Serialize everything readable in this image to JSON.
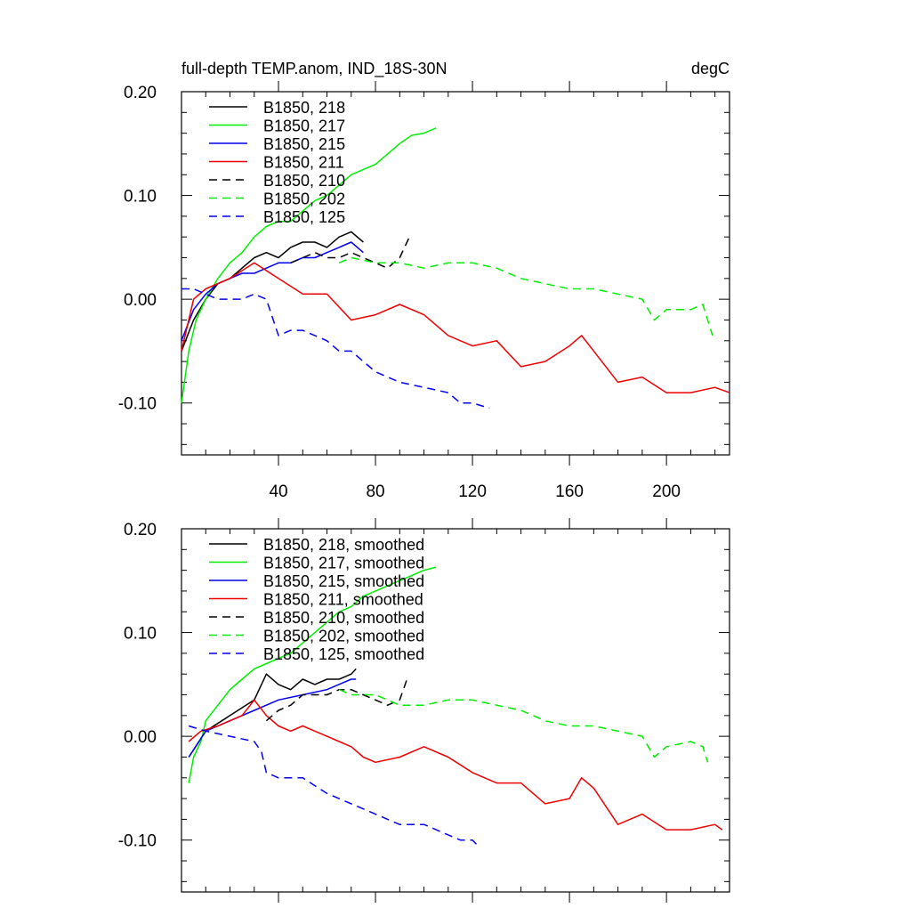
{
  "chart_data": [
    {
      "type": "line",
      "title": "full-depth TEMP.anom, IND_18S-30N",
      "units": "degC",
      "xlim": [
        0,
        226
      ],
      "ylim": [
        -0.15,
        0.2
      ],
      "yticks": [
        "0.20",
        "0.10",
        "0.00",
        "-0.10"
      ],
      "ytick_values": [
        0.2,
        0.1,
        0.0,
        -0.1
      ],
      "xticks": [
        "40",
        "80",
        "120",
        "160",
        "200"
      ],
      "xtick_values": [
        40,
        80,
        120,
        160,
        200
      ],
      "grid": false,
      "legend_position": "top-left",
      "series": [
        {
          "name": "B1850, 218",
          "color": "#000000",
          "dash": false,
          "x": [
            0,
            5,
            10,
            15,
            20,
            25,
            30,
            35,
            40,
            45,
            50,
            55,
            60,
            65,
            70,
            75
          ],
          "y": [
            -0.05,
            -0.02,
            0.0,
            0.015,
            0.02,
            0.03,
            0.04,
            0.045,
            0.04,
            0.05,
            0.055,
            0.055,
            0.05,
            0.06,
            0.065,
            0.055
          ]
        },
        {
          "name": "B1850, 217",
          "color": "#00ee00",
          "dash": false,
          "x": [
            0,
            3,
            6,
            10,
            15,
            20,
            25,
            30,
            35,
            40,
            45,
            50,
            55,
            60,
            65,
            70,
            75,
            80,
            85,
            90,
            95,
            100,
            105
          ],
          "y": [
            -0.1,
            -0.05,
            -0.02,
            0.0,
            0.02,
            0.035,
            0.045,
            0.06,
            0.07,
            0.075,
            0.075,
            0.085,
            0.095,
            0.1,
            0.11,
            0.12,
            0.125,
            0.13,
            0.14,
            0.15,
            0.158,
            0.16,
            0.165
          ]
        },
        {
          "name": "B1850, 215",
          "color": "#0000ee",
          "dash": false,
          "x": [
            0,
            5,
            10,
            15,
            20,
            25,
            30,
            35,
            40,
            45,
            50,
            55,
            60,
            65,
            70,
            75
          ],
          "y": [
            -0.04,
            -0.01,
            0.005,
            0.015,
            0.02,
            0.025,
            0.025,
            0.03,
            0.035,
            0.035,
            0.04,
            0.04,
            0.045,
            0.05,
            0.055,
            0.045
          ]
        },
        {
          "name": "B1850, 211",
          "color": "#ee0000",
          "dash": false,
          "x": [
            0,
            5,
            10,
            20,
            30,
            40,
            50,
            60,
            70,
            80,
            90,
            100,
            110,
            120,
            130,
            140,
            150,
            160,
            165,
            170,
            180,
            190,
            200,
            210,
            220,
            226
          ],
          "y": [
            -0.05,
            0.0,
            0.01,
            0.02,
            0.035,
            0.02,
            0.005,
            0.005,
            -0.02,
            -0.015,
            -0.005,
            -0.015,
            -0.035,
            -0.045,
            -0.04,
            -0.065,
            -0.06,
            -0.045,
            -0.035,
            -0.05,
            -0.08,
            -0.075,
            -0.09,
            -0.09,
            -0.085,
            -0.09
          ]
        },
        {
          "name": "B1850, 210",
          "color": "#000000",
          "dash": true,
          "x": [
            45,
            50,
            55,
            60,
            65,
            70,
            75,
            80,
            85,
            90,
            94
          ],
          "y": [
            0.035,
            0.04,
            0.045,
            0.04,
            0.04,
            0.045,
            0.04,
            0.035,
            0.03,
            0.04,
            0.06
          ]
        },
        {
          "name": "B1850, 202",
          "color": "#00ee00",
          "dash": true,
          "x": [
            65,
            70,
            80,
            90,
            100,
            110,
            120,
            130,
            140,
            150,
            160,
            170,
            180,
            190,
            195,
            200,
            210,
            215,
            219
          ],
          "y": [
            0.035,
            0.04,
            0.035,
            0.035,
            0.03,
            0.035,
            0.035,
            0.03,
            0.02,
            0.015,
            0.01,
            0.01,
            0.005,
            0.0,
            -0.02,
            -0.01,
            -0.01,
            -0.005,
            -0.035
          ]
        },
        {
          "name": "B1850, 125",
          "color": "#0000ee",
          "dash": true,
          "x": [
            0,
            5,
            10,
            15,
            20,
            25,
            30,
            35,
            40,
            45,
            50,
            55,
            60,
            65,
            70,
            75,
            80,
            90,
            100,
            110,
            115,
            120,
            127
          ],
          "y": [
            0.01,
            0.01,
            0.005,
            0.0,
            0.0,
            0.0,
            0.005,
            0.0,
            -0.035,
            -0.03,
            -0.03,
            -0.035,
            -0.04,
            -0.05,
            -0.05,
            -0.06,
            -0.07,
            -0.08,
            -0.085,
            -0.09,
            -0.1,
            -0.1,
            -0.105
          ]
        }
      ]
    },
    {
      "type": "line",
      "title": "",
      "units": "",
      "xlim": [
        0,
        226
      ],
      "ylim": [
        -0.15,
        0.2
      ],
      "yticks": [
        "0.20",
        "0.10",
        "0.00",
        "-0.10"
      ],
      "ytick_values": [
        0.2,
        0.1,
        0.0,
        -0.1
      ],
      "xticks": [],
      "xtick_values": [
        40,
        80,
        120,
        160,
        200
      ],
      "grid": false,
      "legend_position": "top-left",
      "series": [
        {
          "name": "B1850, 218, smoothed",
          "color": "#000000",
          "dash": false,
          "x": [
            3,
            10,
            20,
            30,
            35,
            40,
            45,
            50,
            55,
            60,
            65,
            70,
            72
          ],
          "y": [
            -0.02,
            0.005,
            0.02,
            0.035,
            0.06,
            0.05,
            0.045,
            0.055,
            0.05,
            0.055,
            0.055,
            0.06,
            0.065
          ]
        },
        {
          "name": "B1850, 217, smoothed",
          "color": "#00ee00",
          "dash": false,
          "x": [
            3,
            5,
            8,
            10,
            15,
            20,
            25,
            30,
            35,
            40,
            45,
            50,
            55,
            60,
            65,
            70,
            75,
            80,
            85,
            90,
            95,
            100,
            105
          ],
          "y": [
            -0.045,
            -0.02,
            -0.005,
            0.015,
            0.03,
            0.045,
            0.055,
            0.065,
            0.07,
            0.075,
            0.08,
            0.09,
            0.1,
            0.11,
            0.12,
            0.125,
            0.135,
            0.14,
            0.145,
            0.15,
            0.155,
            0.16,
            0.163
          ]
        },
        {
          "name": "B1850, 215, smoothed",
          "color": "#0000ee",
          "dash": false,
          "x": [
            3,
            10,
            20,
            30,
            40,
            50,
            60,
            70,
            72
          ],
          "y": [
            -0.02,
            0.005,
            0.015,
            0.025,
            0.035,
            0.04,
            0.045,
            0.055,
            0.055
          ]
        },
        {
          "name": "B1850, 211, smoothed",
          "color": "#ee0000",
          "dash": false,
          "x": [
            3,
            8,
            15,
            20,
            25,
            30,
            35,
            40,
            45,
            50,
            55,
            60,
            65,
            70,
            75,
            80,
            90,
            100,
            110,
            120,
            130,
            140,
            150,
            160,
            165,
            170,
            180,
            190,
            200,
            210,
            220,
            223
          ],
          "y": [
            -0.005,
            0.005,
            0.01,
            0.015,
            0.02,
            0.035,
            0.02,
            0.01,
            0.005,
            0.01,
            0.005,
            0.0,
            -0.005,
            -0.01,
            -0.02,
            -0.025,
            -0.02,
            -0.01,
            -0.02,
            -0.035,
            -0.045,
            -0.045,
            -0.065,
            -0.06,
            -0.04,
            -0.05,
            -0.085,
            -0.075,
            -0.09,
            -0.09,
            -0.085,
            -0.09
          ]
        },
        {
          "name": "B1850, 210, smoothed",
          "color": "#000000",
          "dash": true,
          "x": [
            35,
            40,
            45,
            50,
            55,
            60,
            65,
            70,
            75,
            80,
            85,
            90,
            93
          ],
          "y": [
            0.015,
            0.025,
            0.03,
            0.04,
            0.04,
            0.04,
            0.045,
            0.045,
            0.04,
            0.035,
            0.03,
            0.035,
            0.055
          ]
        },
        {
          "name": "B1850, 202, smoothed",
          "color": "#00ee00",
          "dash": true,
          "x": [
            65,
            70,
            80,
            90,
            100,
            110,
            120,
            130,
            140,
            150,
            160,
            170,
            180,
            190,
            195,
            200,
            210,
            215,
            217
          ],
          "y": [
            0.045,
            0.04,
            0.04,
            0.03,
            0.03,
            0.035,
            0.035,
            0.03,
            0.025,
            0.015,
            0.01,
            0.01,
            0.005,
            0.0,
            -0.02,
            -0.01,
            -0.005,
            -0.01,
            -0.025
          ]
        },
        {
          "name": "B1850, 125, smoothed",
          "color": "#0000ee",
          "dash": true,
          "x": [
            3,
            10,
            20,
            30,
            33,
            35,
            40,
            50,
            60,
            70,
            80,
            90,
            100,
            110,
            115,
            120,
            122
          ],
          "y": [
            0.01,
            0.005,
            0.0,
            -0.005,
            -0.015,
            -0.035,
            -0.04,
            -0.04,
            -0.055,
            -0.065,
            -0.075,
            -0.085,
            -0.085,
            -0.095,
            -0.1,
            -0.1,
            -0.105
          ]
        }
      ]
    }
  ]
}
